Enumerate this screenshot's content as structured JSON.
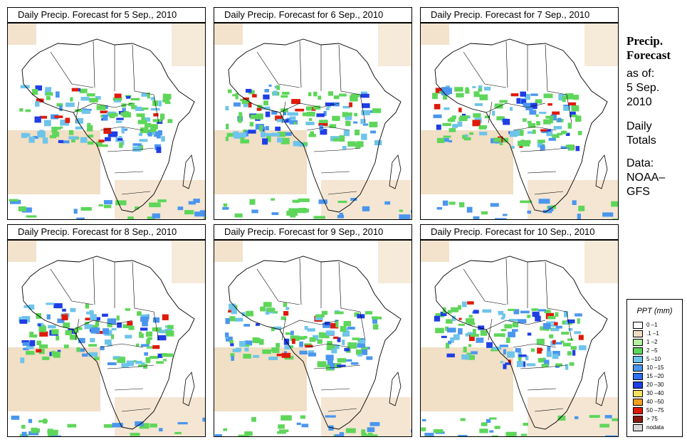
{
  "panels": [
    {
      "title": "Daily Precip. Forecast for  5 Sep., 2010"
    },
    {
      "title": "Daily Precip. Forecast for  6 Sep., 2010"
    },
    {
      "title": "Daily Precip. Forecast for  7 Sep., 2010"
    },
    {
      "title": "Daily Precip. Forecast for  8 Sep., 2010"
    },
    {
      "title": "Daily Precip. Forecast for  9 Sep., 2010"
    },
    {
      "title": "Daily Precip. Forecast for  10 Sep., 2010"
    }
  ],
  "side": {
    "heading1": "Precip.",
    "heading2": "Forecast",
    "asof": "as of:",
    "date1": "5 Sep.",
    "date2": "2010",
    "totals1": "Daily",
    "totals2": "Totals",
    "data1": "Data:",
    "data2": "NOAA–",
    "data3": "GFS"
  },
  "legend": {
    "title": "PPT (mm)",
    "items": [
      {
        "label": "0 –1",
        "color": "#ffffff"
      },
      {
        "label": ".1 –1",
        "color": "#f0dcc0"
      },
      {
        "label": "1 –2",
        "color": "#b4eea0"
      },
      {
        "label": "2 –5",
        "color": "#5ed65a"
      },
      {
        "label": "5 –10",
        "color": "#6ec4ea"
      },
      {
        "label": "10 –15",
        "color": "#4a96ee"
      },
      {
        "label": "15 –20",
        "color": "#2f6ff0"
      },
      {
        "label": "20 –30",
        "color": "#1f3ee6"
      },
      {
        "label": "30 –40",
        "color": "#f5e060"
      },
      {
        "label": "40 –50",
        "color": "#f5a020"
      },
      {
        "label": "50 –75",
        "color": "#e01a0a"
      },
      {
        "label": "> 75",
        "color": "#8a1a10"
      },
      {
        "label": "nodata",
        "color": "#d8d8d8"
      }
    ]
  }
}
